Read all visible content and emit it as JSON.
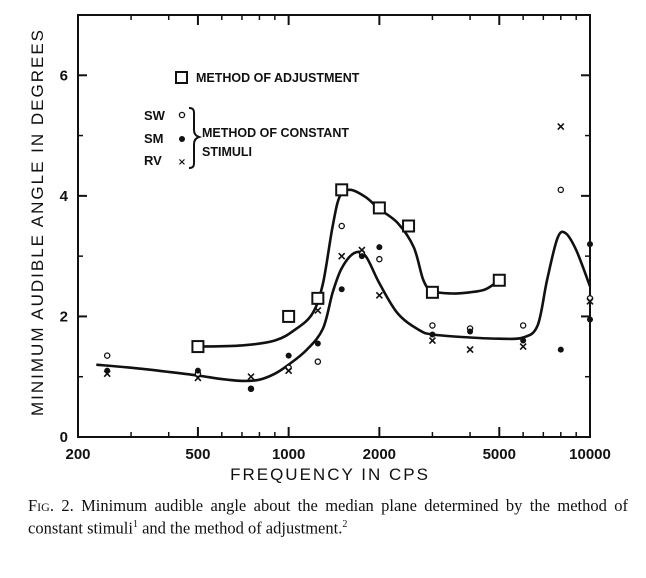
{
  "chart_data": {
    "type": "scatter",
    "xlabel": "FREQUENCY IN CPS",
    "ylabel": "MINIMUM AUDIBLE ANGLE IN DEGREES",
    "x_scale": "log",
    "xlim": [
      200,
      10000
    ],
    "ylim": [
      0,
      7
    ],
    "x_ticks": [
      "200",
      "500",
      "1000",
      "2000",
      "5000",
      "10000"
    ],
    "y_ticks": [
      "0",
      "2",
      "4",
      "6"
    ],
    "legend": {
      "adjustment_label": "METHOD OF ADJUSTMENT",
      "constant_label_line1": "METHOD OF CONSTANT",
      "constant_label_line2": "STIMULI",
      "sw": "SW",
      "sm": "SM",
      "rv": "RV"
    },
    "series": [
      {
        "name": "METHOD OF ADJUSTMENT",
        "marker": "square",
        "points": [
          [
            500,
            1.5
          ],
          [
            1000,
            2.0
          ],
          [
            1250,
            2.3
          ],
          [
            1500,
            4.1
          ],
          [
            2000,
            3.8
          ],
          [
            2500,
            3.5
          ],
          [
            3000,
            2.4
          ],
          [
            5000,
            2.6
          ]
        ]
      },
      {
        "name": "SW",
        "marker": "open-circle",
        "points": [
          [
            250,
            1.35
          ],
          [
            500,
            1.05
          ],
          [
            750,
            0.8
          ],
          [
            1000,
            1.15
          ],
          [
            1250,
            1.25
          ],
          [
            1500,
            3.5
          ],
          [
            1750,
            3.05
          ],
          [
            2000,
            2.95
          ],
          [
            3000,
            1.85
          ],
          [
            4000,
            1.8
          ],
          [
            6000,
            1.85
          ],
          [
            8000,
            4.1
          ],
          [
            10000,
            2.3
          ]
        ]
      },
      {
        "name": "SM",
        "marker": "filled-circle",
        "points": [
          [
            250,
            1.1
          ],
          [
            500,
            1.1
          ],
          [
            750,
            0.8
          ],
          [
            1000,
            1.35
          ],
          [
            1250,
            1.55
          ],
          [
            1500,
            2.45
          ],
          [
            1750,
            3.0
          ],
          [
            2000,
            3.15
          ],
          [
            3000,
            1.7
          ],
          [
            4000,
            1.75
          ],
          [
            6000,
            1.6
          ],
          [
            8000,
            1.45
          ],
          [
            10000,
            1.95
          ],
          [
            10000,
            3.2
          ]
        ]
      },
      {
        "name": "RV",
        "marker": "x",
        "points": [
          [
            250,
            1.05
          ],
          [
            500,
            0.98
          ],
          [
            750,
            1.0
          ],
          [
            1000,
            1.1
          ],
          [
            1250,
            2.1
          ],
          [
            1500,
            3.0
          ],
          [
            1750,
            3.1
          ],
          [
            2000,
            2.35
          ],
          [
            3000,
            1.6
          ],
          [
            4000,
            1.45
          ],
          [
            6000,
            1.5
          ],
          [
            8000,
            5.15
          ],
          [
            10000,
            2.25
          ]
        ]
      }
    ],
    "curves": [
      {
        "name": "adjustment fit",
        "points": [
          [
            500,
            1.5
          ],
          [
            700,
            1.52
          ],
          [
            900,
            1.6
          ],
          [
            1050,
            1.78
          ],
          [
            1200,
            2.05
          ],
          [
            1300,
            2.55
          ],
          [
            1400,
            3.5
          ],
          [
            1480,
            4.0
          ],
          [
            1600,
            4.1
          ],
          [
            1800,
            3.98
          ],
          [
            2000,
            3.78
          ],
          [
            2300,
            3.55
          ],
          [
            2600,
            3.15
          ],
          [
            2800,
            2.6
          ],
          [
            3000,
            2.42
          ],
          [
            3500,
            2.38
          ],
          [
            4000,
            2.4
          ],
          [
            4500,
            2.45
          ],
          [
            5000,
            2.6
          ]
        ]
      },
      {
        "name": "constant stimuli fit",
        "points": [
          [
            230,
            1.2
          ],
          [
            300,
            1.15
          ],
          [
            400,
            1.08
          ],
          [
            500,
            1.02
          ],
          [
            600,
            0.96
          ],
          [
            700,
            0.93
          ],
          [
            800,
            0.95
          ],
          [
            900,
            1.05
          ],
          [
            1000,
            1.2
          ],
          [
            1150,
            1.45
          ],
          [
            1300,
            1.8
          ],
          [
            1400,
            2.4
          ],
          [
            1500,
            2.8
          ],
          [
            1650,
            3.05
          ],
          [
            1800,
            3.0
          ],
          [
            2000,
            2.55
          ],
          [
            2300,
            2.05
          ],
          [
            2700,
            1.78
          ],
          [
            3000,
            1.7
          ],
          [
            4000,
            1.65
          ],
          [
            5000,
            1.63
          ],
          [
            6000,
            1.65
          ],
          [
            6700,
            1.85
          ],
          [
            7200,
            2.6
          ],
          [
            7800,
            3.3
          ],
          [
            8300,
            3.38
          ],
          [
            9000,
            3.1
          ],
          [
            10000,
            2.5
          ]
        ]
      }
    ]
  },
  "caption": {
    "fig_label": "Fig. 2.",
    "text_part1": " Minimum audible angle about the median plane determined by the method of constant stimuli",
    "ref1": "1",
    "text_part2": " and the method of adjustment.",
    "ref2": "2"
  }
}
